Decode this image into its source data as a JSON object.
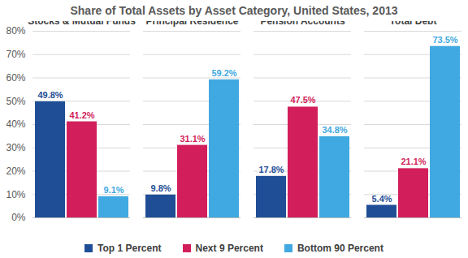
{
  "chart_data": {
    "type": "bar",
    "title": "Share of Total Assets by Asset Category, United States, 2013",
    "categories": [
      "Stocks & Mutual Funds",
      "Principal Residence",
      "Pension Accounts",
      "Total Debt"
    ],
    "series": [
      {
        "name": "Top 1 Percent",
        "color": "#1f4e96",
        "values": [
          49.8,
          9.8,
          17.8,
          5.4
        ],
        "value_labels": [
          "49.8%",
          "9.8%",
          "17.8%",
          "5.4%"
        ]
      },
      {
        "name": "Next 9 Percent",
        "color": "#d21f5b",
        "values": [
          41.2,
          31.1,
          47.5,
          21.1
        ],
        "value_labels": [
          "41.2%",
          "31.1%",
          "47.5%",
          "21.1%"
        ]
      },
      {
        "name": "Bottom 90 Percent",
        "color": "#41a9e1",
        "values": [
          9.1,
          59.2,
          34.8,
          73.5
        ],
        "value_labels": [
          "9.1%",
          "59.2%",
          "34.8%",
          "73.5%"
        ]
      }
    ],
    "ylim": [
      0,
      80
    ],
    "yticks": [
      {
        "value": 0,
        "label": "0%"
      },
      {
        "value": 10,
        "label": "10%"
      },
      {
        "value": 20,
        "label": "20%"
      },
      {
        "value": 30,
        "label": "30%"
      },
      {
        "value": 40,
        "label": "40%"
      },
      {
        "value": 50,
        "label": "50%"
      },
      {
        "value": 60,
        "label": "60%"
      },
      {
        "value": 70,
        "label": "70%"
      },
      {
        "value": 80,
        "label": "80%"
      }
    ],
    "grid": true,
    "data_labels": true,
    "legend": "bottom"
  }
}
